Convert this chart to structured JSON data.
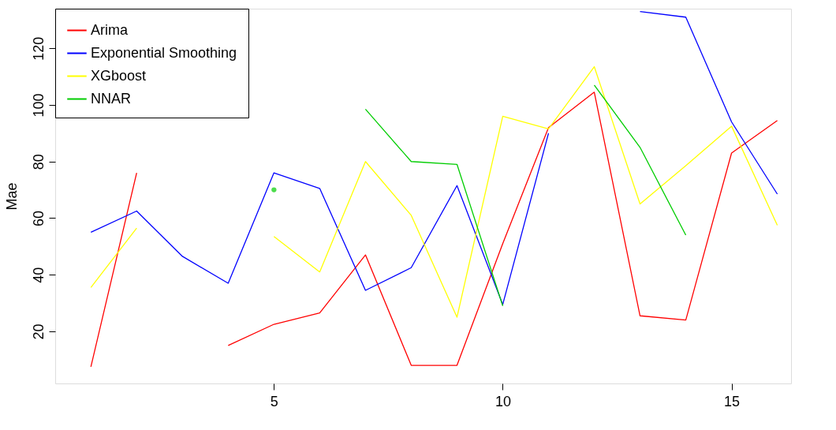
{
  "chart_data": {
    "type": "line",
    "ylabel": "Mae",
    "x": [
      1,
      2,
      3,
      4,
      5,
      6,
      7,
      8,
      9,
      10,
      11,
      12,
      13,
      14,
      15,
      16
    ],
    "series": [
      {
        "name": "Arima",
        "color": "#ff0000",
        "values": [
          7.5,
          76,
          null,
          15,
          22.5,
          26.5,
          47,
          8,
          8,
          51,
          92,
          104.5,
          25.5,
          24,
          83,
          94.5
        ]
      },
      {
        "name": "Exponential Smoothing",
        "color": "#0000ff",
        "values": [
          55,
          62.5,
          46.5,
          37,
          76,
          70.5,
          34.5,
          42.5,
          71.5,
          29.5,
          90,
          null,
          133,
          131,
          94,
          68.5
        ]
      },
      {
        "name": "XGboost",
        "color": "#ffff00",
        "values": [
          35.5,
          56.5,
          null,
          null,
          53.5,
          41,
          80,
          61,
          25,
          96,
          91.5,
          113.5,
          65,
          78.5,
          92.5,
          57.5
        ]
      },
      {
        "name": "NNAR",
        "color": "#00cd00",
        "values": [
          null,
          null,
          null,
          null,
          70,
          null,
          98.5,
          80,
          79,
          29,
          null,
          107,
          85,
          54,
          null,
          null
        ]
      }
    ],
    "xlim": [
      0.22,
      16.3
    ],
    "ylim": [
      1.6,
      134
    ],
    "xticks": [
      5,
      10,
      15
    ],
    "yticks": [
      20,
      40,
      60,
      80,
      100,
      120
    ],
    "grid": false,
    "legend": "top left",
    "marker": "none",
    "line_style": "solid"
  }
}
